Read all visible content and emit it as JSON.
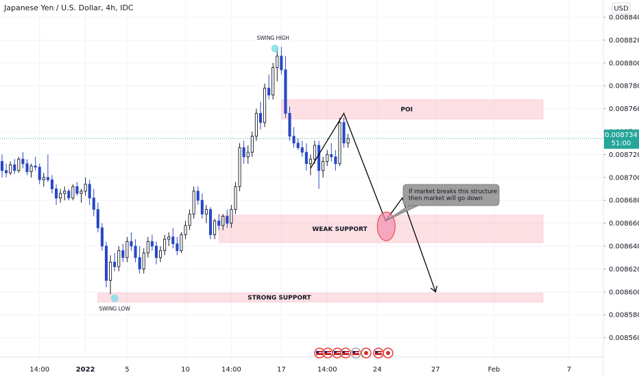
{
  "chart_data": {
    "type": "candlestick",
    "title": "Japanese Yen / U.S. Dollar, 4h, IDC",
    "currency_badge": "USD",
    "y_ticks": [
      "0.008840",
      "0.008820",
      "0.008800",
      "0.008780",
      "0.008760",
      "0.008740",
      "0.008720",
      "0.008700",
      "0.008680",
      "0.008660",
      "0.008640",
      "0.008620",
      "0.008600",
      "0.008580",
      "0.008560"
    ],
    "y_tick_values": [
      0.00884,
      0.00882,
      0.0088,
      0.00878,
      0.00876,
      0.00874,
      0.00872,
      0.0087,
      0.00868,
      0.00866,
      0.00864,
      0.00862,
      0.0086,
      0.00858,
      0.00856
    ],
    "ylim": [
      0.008543,
      0.008855
    ],
    "x_ticks": [
      {
        "label": "14:00",
        "bar": 9,
        "bold": false
      },
      {
        "label": "2022",
        "bar": 20,
        "bold": true
      },
      {
        "label": "5",
        "bar": 30,
        "bold": false
      },
      {
        "label": "10",
        "bar": 44,
        "bold": false
      },
      {
        "label": "14:00",
        "bar": 55,
        "bold": false
      },
      {
        "label": "17",
        "bar": 67,
        "bold": false
      },
      {
        "label": "14:00",
        "bar": 78,
        "bold": false
      },
      {
        "label": "24",
        "bar": 90,
        "bold": false
      },
      {
        "label": "27",
        "bar": 104,
        "bold": false
      },
      {
        "label": "Feb",
        "bar": 118,
        "bold": false
      },
      {
        "label": "7",
        "bar": 136,
        "bold": false
      }
    ],
    "last_price": {
      "value": 0.008734,
      "label": "0.008734",
      "countdown": "51:00",
      "color": "#26a69a"
    },
    "colors": {
      "up": "#131722",
      "down": "#2948c4",
      "zone": "#f8bbc4",
      "accent": "#26a69a"
    },
    "candles": [
      [
        0.008714,
        0.00872,
        0.0087,
        0.008706
      ],
      [
        0.008706,
        0.008712,
        0.0087,
        0.008704
      ],
      [
        0.008704,
        0.008714,
        0.008702,
        0.008711
      ],
      [
        0.008711,
        0.008716,
        0.008703,
        0.008706
      ],
      [
        0.008706,
        0.008718,
        0.008704,
        0.008716
      ],
      [
        0.008716,
        0.008722,
        0.008708,
        0.008712
      ],
      [
        0.008712,
        0.008716,
        0.008702,
        0.008705
      ],
      [
        0.008705,
        0.008712,
        0.0087,
        0.00871
      ],
      [
        0.00871,
        0.008718,
        0.008706,
        0.008709
      ],
      [
        0.008709,
        0.008712,
        0.008694,
        0.008698
      ],
      [
        0.008698,
        0.008704,
        0.008692,
        0.0087
      ],
      [
        0.0087,
        0.00872,
        0.008696,
        0.008698
      ],
      [
        0.008698,
        0.008702,
        0.008686,
        0.00869
      ],
      [
        0.00869,
        0.008694,
        0.008676,
        0.008682
      ],
      [
        0.008682,
        0.00869,
        0.008678,
        0.008686
      ],
      [
        0.008686,
        0.008692,
        0.00868,
        0.008688
      ],
      [
        0.008688,
        0.00869,
        0.00868,
        0.008682
      ],
      [
        0.008682,
        0.008694,
        0.00868,
        0.008692
      ],
      [
        0.008692,
        0.008696,
        0.008684,
        0.008686
      ],
      [
        0.008686,
        0.00869,
        0.008678,
        0.008688
      ],
      [
        0.008688,
        0.0087,
        0.008684,
        0.008694
      ],
      [
        0.008694,
        0.008698,
        0.008676,
        0.008682
      ],
      [
        0.008682,
        0.00869,
        0.008666,
        0.008672
      ],
      [
        0.008672,
        0.008678,
        0.008652,
        0.008656
      ],
      [
        0.008656,
        0.00866,
        0.008636,
        0.00864
      ],
      [
        0.00864,
        0.008644,
        0.008604,
        0.00861
      ],
      [
        0.00861,
        0.008632,
        0.008598,
        0.008626
      ],
      [
        0.008626,
        0.008634,
        0.008618,
        0.008622
      ],
      [
        0.008622,
        0.00864,
        0.008618,
        0.008636
      ],
      [
        0.008636,
        0.008642,
        0.008626,
        0.00863
      ],
      [
        0.00863,
        0.008648,
        0.008626,
        0.008644
      ],
      [
        0.008644,
        0.008652,
        0.008636,
        0.00864
      ],
      [
        0.00864,
        0.008646,
        0.008626,
        0.00863
      ],
      [
        0.00863,
        0.00864,
        0.008616,
        0.00862
      ],
      [
        0.00862,
        0.008638,
        0.008616,
        0.008634
      ],
      [
        0.008634,
        0.008648,
        0.00863,
        0.008644
      ],
      [
        0.008644,
        0.00865,
        0.008636,
        0.00864
      ],
      [
        0.00864,
        0.008644,
        0.008624,
        0.00863
      ],
      [
        0.00863,
        0.00864,
        0.008626,
        0.008636
      ],
      [
        0.008636,
        0.00865,
        0.008632,
        0.008646
      ],
      [
        0.008646,
        0.008652,
        0.00864,
        0.008648
      ],
      [
        0.008648,
        0.008656,
        0.008638,
        0.008642
      ],
      [
        0.008642,
        0.008648,
        0.008632,
        0.008636
      ],
      [
        0.008636,
        0.008652,
        0.008634,
        0.00865
      ],
      [
        0.00865,
        0.008662,
        0.008646,
        0.008658
      ],
      [
        0.008658,
        0.008672,
        0.008654,
        0.008668
      ],
      [
        0.008668,
        0.008692,
        0.008664,
        0.008688
      ],
      [
        0.008688,
        0.008692,
        0.008676,
        0.00868
      ],
      [
        0.00868,
        0.008686,
        0.008664,
        0.008668
      ],
      [
        0.008668,
        0.008676,
        0.00866,
        0.008672
      ],
      [
        0.008672,
        0.008674,
        0.008646,
        0.00865
      ],
      [
        0.00865,
        0.008664,
        0.008646,
        0.008662
      ],
      [
        0.008662,
        0.008668,
        0.008654,
        0.008658
      ],
      [
        0.008658,
        0.008668,
        0.008654,
        0.008666
      ],
      [
        0.008666,
        0.008672,
        0.008656,
        0.00866
      ],
      [
        0.00866,
        0.008676,
        0.008656,
        0.008672
      ],
      [
        0.008672,
        0.008696,
        0.008668,
        0.008692
      ],
      [
        0.008692,
        0.00873,
        0.008688,
        0.008726
      ],
      [
        0.008726,
        0.008732,
        0.008712,
        0.008718
      ],
      [
        0.008718,
        0.008728,
        0.008712,
        0.008722
      ],
      [
        0.008722,
        0.00874,
        0.008718,
        0.008736
      ],
      [
        0.008736,
        0.00876,
        0.008732,
        0.008756
      ],
      [
        0.008756,
        0.008766,
        0.008742,
        0.008748
      ],
      [
        0.008748,
        0.008782,
        0.008744,
        0.008778
      ],
      [
        0.008778,
        0.00879,
        0.008768,
        0.008772
      ],
      [
        0.008772,
        0.0088,
        0.008768,
        0.008796
      ],
      [
        0.008796,
        0.008812,
        0.008784,
        0.008806
      ],
      [
        0.008806,
        0.008814,
        0.00879,
        0.008794
      ],
      [
        0.008794,
        0.008806,
        0.008752,
        0.008756
      ],
      [
        0.008756,
        0.008762,
        0.008732,
        0.008736
      ],
      [
        0.008736,
        0.008744,
        0.008726,
        0.00873
      ],
      [
        0.00873,
        0.008734,
        0.008724,
        0.008726
      ],
      [
        0.008726,
        0.008732,
        0.008718,
        0.008722
      ],
      [
        0.008722,
        0.00873,
        0.008706,
        0.008712
      ],
      [
        0.008712,
        0.00872,
        0.008702,
        0.008716
      ],
      [
        0.008716,
        0.008732,
        0.008712,
        0.008728
      ],
      [
        0.008728,
        0.008732,
        0.00869,
        0.008706
      ],
      [
        0.008706,
        0.008718,
        0.0087,
        0.008714
      ],
      [
        0.008714,
        0.008724,
        0.00871,
        0.00872
      ],
      [
        0.00872,
        0.00873,
        0.008714,
        0.008718
      ],
      [
        0.008718,
        0.008724,
        0.008706,
        0.008712
      ],
      [
        0.008712,
        0.008752,
        0.00871,
        0.008748
      ],
      [
        0.008748,
        0.008752,
        0.008726,
        0.00873
      ],
      [
        0.00873,
        0.008738,
        0.008726,
        0.008734
      ]
    ],
    "zones": [
      {
        "label": "POI",
        "y_top": 0.008768,
        "y_bottom": 0.008751,
        "bar_start": 67,
        "bar_end": 133
      },
      {
        "label": "WEAK SUPPORT",
        "y_top": 0.008667,
        "y_bottom": 0.008643,
        "bar_start": 52,
        "bar_end": 133
      },
      {
        "label": "STRONG SUPPORT",
        "y_top": 0.008599,
        "y_bottom": 0.008591,
        "bar_start": 23,
        "bar_end": 133
      }
    ],
    "projection_path": [
      {
        "bar": 74,
        "price": 0.008708
      },
      {
        "bar": 82,
        "price": 0.008756
      },
      {
        "bar": 92,
        "price": 0.008662
      },
      {
        "bar": 96,
        "price": 0.008682
      },
      {
        "bar": 104,
        "price": 0.0086
      }
    ],
    "swing_high": {
      "label": "SWING HIGH",
      "bar": 65,
      "price": 0.008812
    },
    "swing_low": {
      "label": "SWING LOW",
      "bar": 27,
      "price": 0.008595
    },
    "annotation": {
      "line1": "If market breaks this structure",
      "line2": "then market will go down",
      "target_bar": 92,
      "target_price": 0.008662
    }
  }
}
